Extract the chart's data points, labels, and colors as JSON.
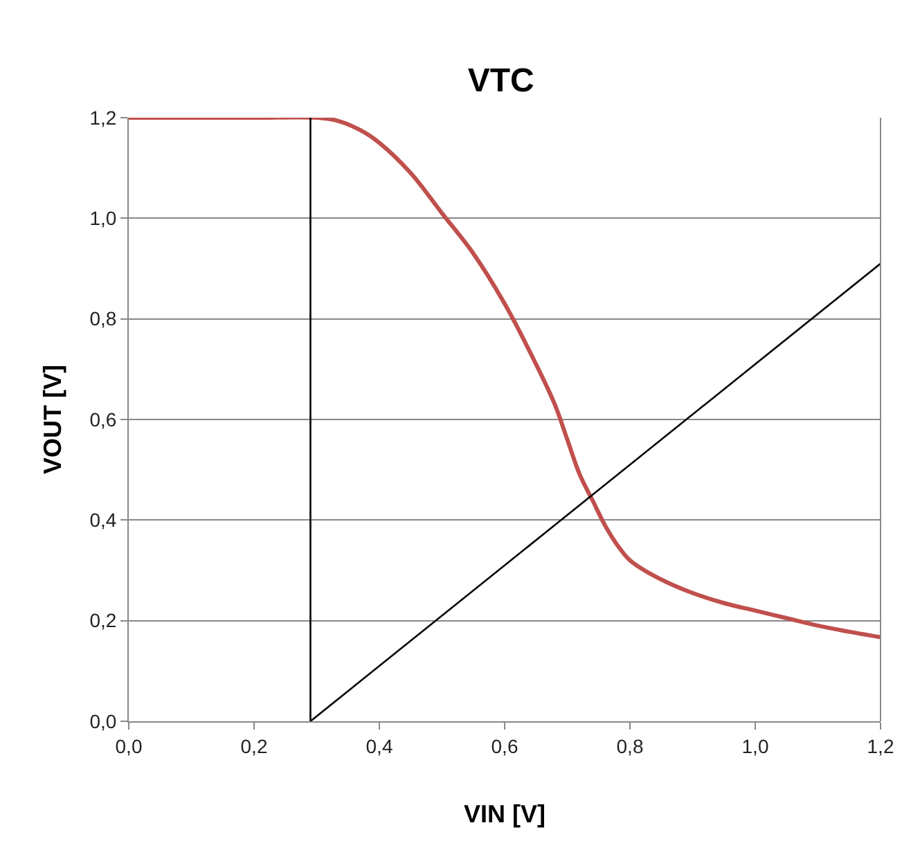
{
  "chart_data": {
    "type": "line",
    "title": "VTC",
    "xlabel": "VIN [V]",
    "ylabel": "VOUT [V]",
    "series": [
      {
        "color": "#c0504d",
        "x": [
          0,
          0.1,
          0.2,
          0.3,
          0.33,
          0.37,
          0.4,
          0.45,
          0.5,
          0.55,
          0.6,
          0.65,
          0.68,
          0.7,
          0.72,
          0.74,
          0.76,
          0.78,
          0.8,
          0.83,
          0.87,
          0.9,
          0.95,
          1.0,
          1.05,
          1.1,
          1.15,
          1.2
        ],
        "values": [
          1.2,
          1.2,
          1.2,
          1.2,
          1.195,
          1.175,
          1.15,
          1.09,
          1.01,
          0.93,
          0.83,
          0.71,
          0.63,
          0.56,
          0.49,
          0.44,
          0.39,
          0.35,
          0.32,
          0.295,
          0.27,
          0.255,
          0.235,
          0.22,
          0.205,
          0.19,
          0.178,
          0.167
        ]
      },
      {
        "color": "#000000",
        "x": [
          0.29,
          0.29
        ],
        "values": [
          1.2,
          0
        ]
      },
      {
        "color": "#000000",
        "x": [
          0.29,
          1.2
        ],
        "values": [
          0,
          0.91
        ]
      }
    ],
    "xlim": [
      0,
      1.2
    ],
    "ylim": [
      0,
      1.2
    ],
    "xticks": [
      {
        "value": 0,
        "label": "0,0"
      },
      {
        "value": 0.2,
        "label": "0,2"
      },
      {
        "value": 0.4,
        "label": "0,4"
      },
      {
        "value": 0.6,
        "label": "0,6"
      },
      {
        "value": 0.8,
        "label": "0,8"
      },
      {
        "value": 1.0,
        "label": "1,0"
      },
      {
        "value": 1.2,
        "label": "1,2"
      }
    ],
    "yticks": [
      {
        "value": 0,
        "label": "0,0"
      },
      {
        "value": 0.2,
        "label": "0,2"
      },
      {
        "value": 0.4,
        "label": "0,4"
      },
      {
        "value": 0.6,
        "label": "0,6"
      },
      {
        "value": 0.8,
        "label": "0,8"
      },
      {
        "value": 1.0,
        "label": "1,0"
      },
      {
        "value": 1.2,
        "label": "1,2"
      }
    ],
    "grid": "y"
  }
}
